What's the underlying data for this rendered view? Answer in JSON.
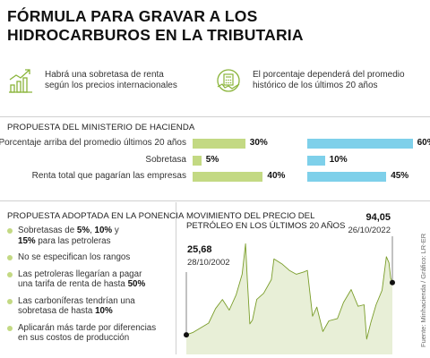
{
  "title": {
    "line1": "FÓRMULA PARA GRAVAR A LOS",
    "line2": "HIDROCARBUROS EN LA TRIBUTARIA"
  },
  "info": [
    {
      "icon": "growth-chart-icon",
      "line1": "Habrá una sobretasa de renta",
      "line2": "según los precios internacionales"
    },
    {
      "icon": "calculator-chart-icon",
      "line1": "El porcentaje dependerá del promedio",
      "line2": "histórico de los últimos 20 años"
    }
  ],
  "ministry": {
    "label": "Propuesta del Ministerio de Hacienda",
    "rows": [
      {
        "label": "Porcentaje arriba del promedio últimos 20 años",
        "green": 30,
        "green_label": "30%",
        "blue": 60,
        "blue_label": "60%"
      },
      {
        "label": "Sobretasa",
        "green": 5,
        "green_label": "5%",
        "blue": 10,
        "blue_label": "10%"
      },
      {
        "label": "Renta total que pagarían las empresas",
        "green": 40,
        "green_label": "40%",
        "blue": 45,
        "blue_label": "45%"
      }
    ],
    "colors": {
      "green": "#c3d983",
      "blue": "#7ed0ea"
    }
  },
  "ponencia": {
    "label": "Propuesta adoptada en la ponencia",
    "items": [
      {
        "parts": [
          {
            "t": "Sobretasas de "
          },
          {
            "t": "5%",
            "b": true
          },
          {
            "t": ", "
          },
          {
            "t": "10%",
            "b": true
          },
          {
            "t": " y"
          },
          {
            "br": true
          },
          {
            "t": "15%",
            "b": true
          },
          {
            "t": " para las petroleras"
          }
        ]
      },
      {
        "parts": [
          {
            "t": "No se especifican los rangos"
          }
        ]
      },
      {
        "parts": [
          {
            "t": "Las petroleras llegarían a pagar"
          },
          {
            "br": true
          },
          {
            "t": "una tarifa de renta de hasta "
          },
          {
            "t": "50%",
            "b": true
          }
        ]
      },
      {
        "parts": [
          {
            "t": "Las carboníferas tendrían una"
          },
          {
            "br": true
          },
          {
            "t": "sobretasa de hasta "
          },
          {
            "t": "10%",
            "b": true
          }
        ]
      },
      {
        "parts": [
          {
            "t": "Aplicarán más tarde por diferencias"
          },
          {
            "br": true
          },
          {
            "t": "en sus costos de producción"
          }
        ]
      }
    ]
  },
  "chart_data": {
    "type": "area",
    "title": "Movimiento del precio del petróleo en los últimos 20 años",
    "start": {
      "value": 25.68,
      "label": "25,68",
      "date": "28/10/2002"
    },
    "end": {
      "value": 94.05,
      "label": "94,05",
      "date": "26/10/2022"
    },
    "x": [
      "2002-10",
      "2003-06",
      "2004-03",
      "2004-12",
      "2005-08",
      "2006-04",
      "2006-12",
      "2007-08",
      "2008-03",
      "2008-07",
      "2008-09",
      "2008-12",
      "2009-03",
      "2009-08",
      "2010-04",
      "2011-01",
      "2011-04",
      "2012-02",
      "2012-10",
      "2013-06",
      "2014-03",
      "2014-07",
      "2015-01",
      "2015-06",
      "2016-01",
      "2016-08",
      "2017-06",
      "2018-01",
      "2018-10",
      "2019-06",
      "2020-01",
      "2020-04",
      "2020-09",
      "2021-03",
      "2021-10",
      "2022-03",
      "2022-06",
      "2022-08",
      "2022-10"
    ],
    "values": [
      25.68,
      29,
      35,
      41,
      60,
      72,
      58,
      78,
      105,
      145,
      100,
      40,
      45,
      72,
      80,
      98,
      125,
      118,
      110,
      105,
      108,
      110,
      50,
      62,
      30,
      44,
      47,
      68,
      85,
      63,
      65,
      20,
      42,
      65,
      84,
      128,
      120,
      100,
      94.05
    ],
    "ylim": [
      0,
      150
    ],
    "colors": {
      "fill": "#e8efd7",
      "line": "#7a9d2a"
    }
  },
  "source": "Fuente: Minhacienda / Gráfico: LR-ER"
}
